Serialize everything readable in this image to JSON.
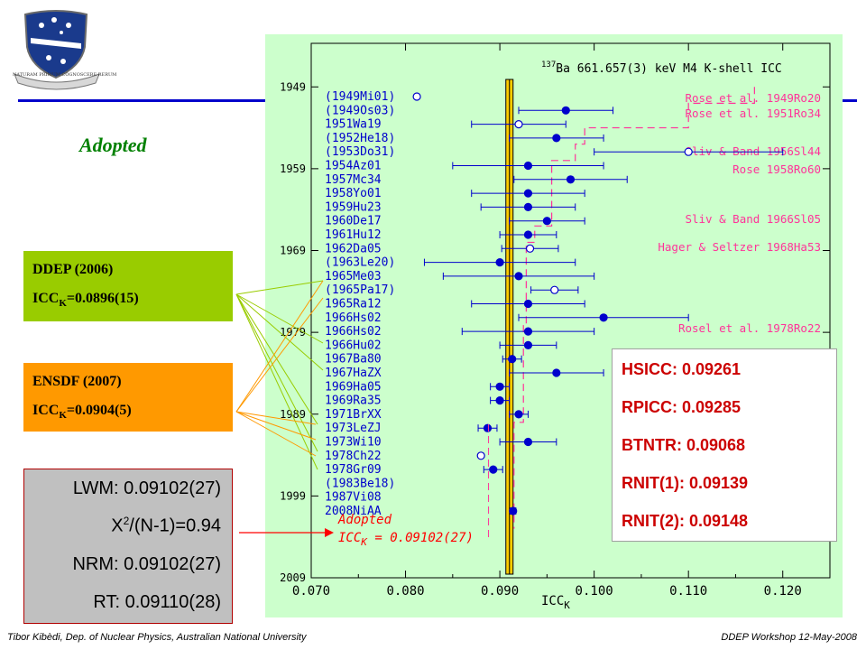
{
  "slide": {
    "adopted_label": "Adopted",
    "logo_motto": "NATURAM PRIMUM COGNOSCERE RERUM",
    "ddep": {
      "title": "DDEP (2006)",
      "value_prefix": "ICC",
      "value_sub": "K",
      "value": "=0.0896(15)"
    },
    "ensdf": {
      "title": "ENSDF (2007)",
      "value_prefix": "ICC",
      "value_sub": "K",
      "value": "=0.0904(5)"
    },
    "lwm_box": {
      "lwm": "LWM: 0.09102(27)",
      "chi_prefix": "X",
      "chi_sup": "2",
      "chi_suffix": "/(N-1)=0.94",
      "nrm": "NRM: 0.09102(27)",
      "rt": "RT: 0.09110(28)"
    },
    "calc_box": [
      "HSICC: 0.09261",
      "RPICC: 0.09285",
      "BTNTR: 0.09068",
      "RNIT(1): 0.09139",
      "RNIT(2): 0.09148"
    ],
    "footer_left": "Tibor Kibèdi, Dep. of Nuclear Physics, Australian National University",
    "footer_right": "DDEP Workshop 12-May-2008"
  },
  "chart_data": {
    "type": "scatter",
    "title_sup": "137",
    "title": "Ba 661.657(3) keV M4 K-shell ICC",
    "xlabel": "ICC",
    "xlabel_sub": "K",
    "xlim": [
      0.07,
      0.125
    ],
    "ylim": [
      1945,
      2009
    ],
    "x_ticks": [
      "0.070",
      "0.080",
      "0.090",
      "0.100",
      "0.110",
      "0.120"
    ],
    "y_ticks": [
      "1949",
      "1959",
      "1969",
      "1979",
      "1989",
      "1999",
      "2009"
    ],
    "adopted_band": {
      "value": 0.09102,
      "uncertainty": 0.00027
    },
    "adopted_annotation": {
      "line1": "Adopted",
      "line2_prefix": "ICC",
      "line2_sub": "K",
      "line2_value": " = 0.09102(27)"
    },
    "colors": {
      "data": "#0000cc",
      "theory": "#ff3399",
      "adopted_band": "#ffcc00",
      "plot_bg": "#ccffcc",
      "arrow_ddep": "#99cc00",
      "arrow_ensdf": "#ff9900",
      "arrow_lwm": "#ff0000"
    },
    "measurements": [
      {
        "label": "(1949Mi01)",
        "x": 0.0812,
        "err": null,
        "open": true
      },
      {
        "label": "(1949Os03)",
        "x": 0.097,
        "err": 0.005,
        "open": false
      },
      {
        "label": "1951Wa19",
        "x": 0.092,
        "err": 0.005,
        "open": true
      },
      {
        "label": "(1952He18)",
        "x": 0.096,
        "err": 0.005,
        "open": false
      },
      {
        "label": "(1953Do31)",
        "x": 0.11,
        "err": 0.01,
        "open": true
      },
      {
        "label": "1954Az01",
        "x": 0.093,
        "err": 0.008,
        "open": false
      },
      {
        "label": "1957Mc34",
        "x": 0.0975,
        "err": 0.006,
        "open": false
      },
      {
        "label": "1958Yo01",
        "x": 0.093,
        "err": 0.006,
        "open": false
      },
      {
        "label": "1959Hu23",
        "x": 0.093,
        "err": 0.005,
        "open": false
      },
      {
        "label": "1960De17",
        "x": 0.095,
        "err": 0.004,
        "open": false
      },
      {
        "label": "1961Hu12",
        "x": 0.093,
        "err": 0.003,
        "open": false
      },
      {
        "label": "1962Da05",
        "x": 0.0932,
        "err": 0.003,
        "open": true
      },
      {
        "label": "(1963Le20)",
        "x": 0.09,
        "err": 0.008,
        "open": false
      },
      {
        "label": "1965Me03",
        "x": 0.092,
        "err": 0.008,
        "open": false
      },
      {
        "label": "(1965Pa17)",
        "x": 0.0958,
        "err": 0.0025,
        "open": true
      },
      {
        "label": "1965Ra12",
        "x": 0.093,
        "err": 0.006,
        "open": false
      },
      {
        "label": "1966Hs02",
        "x": 0.101,
        "err": 0.009,
        "open": false
      },
      {
        "label": "1966Hs02",
        "x": 0.093,
        "err": 0.007,
        "open": false
      },
      {
        "label": "1966Hu02",
        "x": 0.093,
        "err": 0.003,
        "open": false
      },
      {
        "label": "1967Ba80",
        "x": 0.0913,
        "err": 0.001,
        "open": false
      },
      {
        "label": "1967HaZX",
        "x": 0.096,
        "err": 0.005,
        "open": false
      },
      {
        "label": "1969Ha05",
        "x": 0.09,
        "err": 0.001,
        "open": false
      },
      {
        "label": "1969Ra35",
        "x": 0.09,
        "err": 0.001,
        "open": false
      },
      {
        "label": "1971BrXX",
        "x": 0.092,
        "err": 0.001,
        "open": false
      },
      {
        "label": "1973LeZJ",
        "x": 0.0887,
        "err": 0.001,
        "open": false
      },
      {
        "label": "1973Wi10",
        "x": 0.093,
        "err": 0.003,
        "open": false
      },
      {
        "label": "1978Ch22",
        "x": 0.088,
        "err": null,
        "open": true
      },
      {
        "label": "1978Gr09",
        "x": 0.0893,
        "err": 0.001,
        "open": false
      },
      {
        "label": "(1983Be18)",
        "x": null,
        "err": null,
        "open": false
      },
      {
        "label": "1987Vi08",
        "x": null,
        "err": null,
        "open": false
      },
      {
        "label": "2008NiAA",
        "x": 0.0914,
        "err": 0.0003,
        "open": false
      }
    ],
    "theory_labels": [
      {
        "text": "Rose et al. 1949Ro20",
        "x": 0.117
      },
      {
        "text": "Rose et al. 1951Ro34",
        "x": 0.11
      },
      {
        "text": "Sliv & Band  1956Sl44",
        "x": 0.099
      },
      {
        "text": "Rose  1958Ro60",
        "x": 0.098
      },
      {
        "text": "Sliv & Band  1966Sl05",
        "x": 0.096
      },
      {
        "text": "Hager & Seltzer 1968Ha53",
        "x": 0.0937
      },
      {
        "text": "Rosel et al. 1978Ro22",
        "x": 0.0928
      }
    ]
  }
}
